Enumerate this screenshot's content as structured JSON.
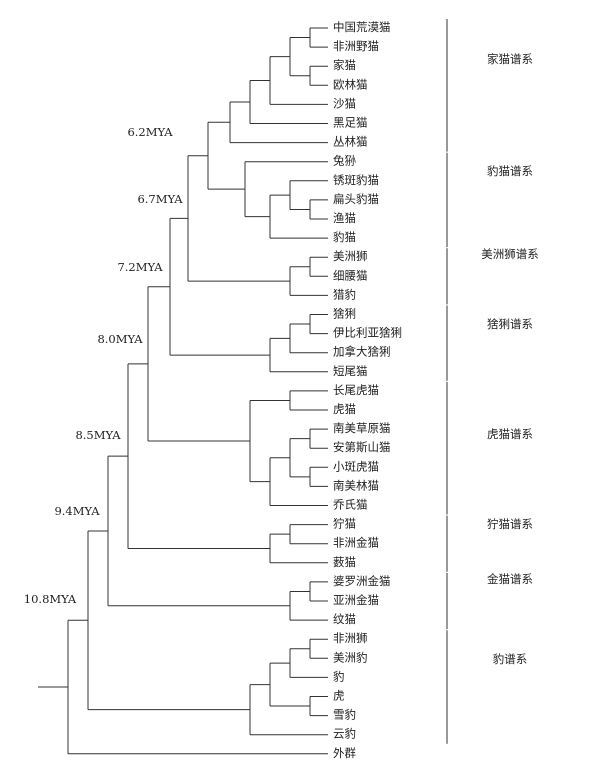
{
  "leaves": [
    "中国荒漠猫",
    "非洲野猫",
    "家猫",
    "欧林猫",
    "沙猫",
    "黑足猫",
    "丛林猫",
    "兔狲",
    "锈斑豹猫",
    "扁头豹猫",
    "渔猫",
    "豹猫",
    "美洲狮",
    "细腰猫",
    "猎豹",
    "猞猁",
    "伊比利亚猞猁",
    "加拿大猞猁",
    "短尾猫",
    "长尾虎猫",
    "虎猫",
    "南美草原猫",
    "安第斯山猫",
    "小斑虎猫",
    "南美林猫",
    "乔氏猫",
    "狞猫",
    "非洲金猫",
    "薮猫",
    "婆罗洲金猫",
    "亚洲金猫",
    "纹猫",
    "非洲狮",
    "美洲豹",
    "豹",
    "虎",
    "雪豹",
    "云豹",
    "外群"
  ],
  "lineages": [
    "家猫谱系",
    "豹猫谱系",
    "美洲狮谱系",
    "猞猁谱系",
    "虎猫谱系",
    "狞猫谱系",
    "金猫谱系",
    "豹谱系"
  ],
  "nodes": [
    "6.2MYA",
    "6.7MYA",
    "7.2MYA",
    "8.0MYA",
    "8.5MYA",
    "9.4MYA",
    "10.8MYA"
  ]
}
